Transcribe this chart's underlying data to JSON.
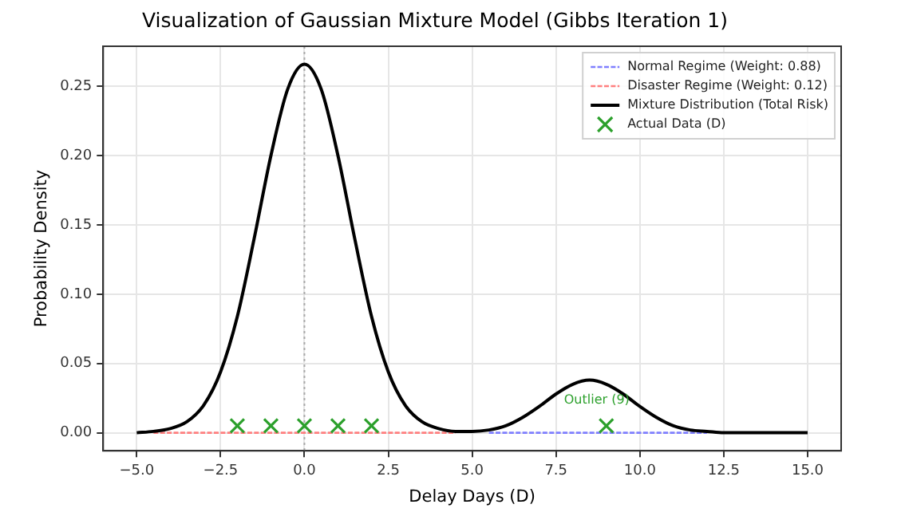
{
  "chart_data": {
    "type": "line",
    "title": "Visualization of Gaussian Mixture Model (Gibbs Iteration 1)",
    "xlabel": "Delay Days (D)",
    "ylabel": "Probability Density",
    "x": [
      -5,
      -4.5,
      -4,
      -3.5,
      -3,
      -2.5,
      -2,
      -1.5,
      -1,
      -0.5,
      0,
      0.5,
      1,
      1.5,
      2,
      2.5,
      3,
      3.5,
      4,
      4.5,
      5,
      5.5,
      6,
      6.5,
      7,
      7.5,
      8,
      8.5,
      9,
      9.5,
      10,
      10.5,
      11,
      11.5,
      12,
      12.5,
      13,
      13.5,
      14,
      14.5,
      15
    ],
    "series": [
      {
        "name": "Normal Regime (Weight: 0.88)",
        "color": "#7f7fff",
        "line_style": "dashed",
        "marker": "none",
        "values": [
          null,
          null,
          null,
          null,
          null,
          null,
          null,
          null,
          null,
          null,
          null,
          null,
          null,
          null,
          null,
          null,
          null,
          null,
          null,
          null,
          null,
          0,
          0,
          0,
          0,
          0,
          0,
          0,
          0,
          0,
          0,
          0,
          0,
          0,
          0,
          null,
          null,
          null,
          null,
          null,
          null
        ]
      },
      {
        "name": "Disaster Regime (Weight: 0.12)",
        "color": "#ff7f7f",
        "line_style": "dashed",
        "marker": "none",
        "values": [
          null,
          0,
          0,
          0,
          0,
          0,
          0,
          0,
          0,
          0,
          0,
          0,
          0,
          0,
          0,
          0,
          0,
          0,
          0,
          0,
          null,
          null,
          null,
          null,
          null,
          null,
          null,
          null,
          null,
          null,
          null,
          null,
          null,
          null,
          null,
          null,
          null,
          null,
          null,
          null,
          null
        ]
      },
      {
        "name": "Mixture Distribution (Total Risk)",
        "color": "#000000",
        "line_style": "solid",
        "marker": "none",
        "values": [
          0,
          0.001,
          0.003,
          0.008,
          0.02,
          0.044,
          0.084,
          0.14,
          0.2,
          0.248,
          0.266,
          0.248,
          0.2,
          0.14,
          0.084,
          0.044,
          0.02,
          0.008,
          0.003,
          0.001,
          0.001,
          0.002,
          0.005,
          0.011,
          0.019,
          0.028,
          0.035,
          0.038,
          0.035,
          0.028,
          0.019,
          0.011,
          0.005,
          0.002,
          0.001,
          0,
          0,
          0,
          0,
          0,
          0
        ]
      },
      {
        "name": "Actual Data (D)",
        "type": "scatter",
        "color": "#2ca02c",
        "marker": "cross",
        "x": [
          -2,
          -1,
          0,
          1,
          2,
          9
        ],
        "values": [
          0.005,
          0.005,
          0.005,
          0.005,
          0.005,
          0.005
        ]
      }
    ],
    "annotations": [
      {
        "text": "Outlier (9)",
        "x": 9,
        "y": 0.005
      }
    ],
    "ref_lines": [
      {
        "axis": "x",
        "value": 0,
        "color": "#aaaaaa",
        "line_style": "dotted"
      }
    ],
    "xlim": [
      -6,
      16
    ],
    "xticks": [
      {
        "value": -5,
        "label": "−5.0"
      },
      {
        "value": -2.5,
        "label": "−2.5"
      },
      {
        "value": 0,
        "label": "0.0"
      },
      {
        "value": 2.5,
        "label": "2.5"
      },
      {
        "value": 5,
        "label": "5.0"
      },
      {
        "value": 7.5,
        "label": "7.5"
      },
      {
        "value": 10,
        "label": "10.0"
      },
      {
        "value": 12.5,
        "label": "12.5"
      },
      {
        "value": 15,
        "label": "15.0"
      }
    ],
    "ylim": [
      -0.013,
      0.279
    ],
    "yticks": [
      {
        "value": 0,
        "label": "0.00"
      },
      {
        "value": 0.05,
        "label": "0.05"
      },
      {
        "value": 0.1,
        "label": "0.10"
      },
      {
        "value": 0.15,
        "label": "0.15"
      },
      {
        "value": 0.2,
        "label": "0.20"
      },
      {
        "value": 0.25,
        "label": "0.25"
      }
    ],
    "grid": true,
    "legend": "top right"
  }
}
